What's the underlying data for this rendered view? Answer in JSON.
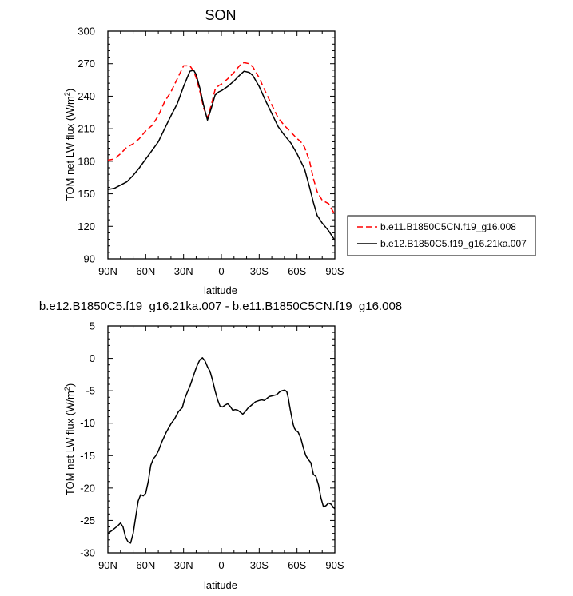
{
  "chart_data": [
    {
      "type": "line",
      "title": "SON",
      "xlabel": "latitude",
      "ylabel": "TOM net LW flux (W/m",
      "ylabel_sup": "2",
      "ylabel_end": ")",
      "xlim": [
        90,
        -90
      ],
      "ylim": [
        90,
        300
      ],
      "x_ticks": [
        90,
        60,
        30,
        0,
        -30,
        -60,
        -90
      ],
      "x_tick_labels": [
        "90N",
        "60N",
        "30N",
        "0",
        "30S",
        "60S",
        "90S"
      ],
      "y_ticks": [
        90,
        120,
        150,
        180,
        210,
        240,
        270,
        300
      ],
      "y_tick_labels": [
        "90",
        "120",
        "150",
        "180",
        "210",
        "240",
        "270",
        "300"
      ],
      "legend_position": "right",
      "series": [
        {
          "name": "b.e11.B1850C5CN.f19_g16.008",
          "color": "#ff0000",
          "dash": "dashed",
          "x": [
            90,
            85,
            80,
            75,
            70,
            65,
            60,
            55,
            50,
            45,
            40,
            35,
            30,
            25,
            22,
            20,
            17,
            14,
            11,
            8,
            5,
            2,
            0,
            -5,
            -10,
            -15,
            -18,
            -22,
            -25,
            -30,
            -35,
            -40,
            -45,
            -50,
            -55,
            -60,
            -63,
            -66,
            -70,
            -73,
            -76,
            -80,
            -85,
            -90
          ],
          "y": [
            181,
            182,
            187,
            193,
            196,
            201,
            208,
            213,
            222,
            235,
            244,
            256,
            268,
            268,
            263,
            257,
            244,
            229,
            220,
            232,
            246,
            250,
            251,
            256,
            262,
            269,
            271,
            270,
            267,
            257,
            244,
            232,
            220,
            213,
            207,
            201,
            198,
            193,
            180,
            164,
            152,
            144,
            141,
            131
          ]
        },
        {
          "name": "b.e12.B1850C5.f19_g16.21ka.007",
          "color": "#000000",
          "dash": "solid",
          "x": [
            90,
            85,
            80,
            75,
            70,
            65,
            60,
            55,
            50,
            45,
            40,
            35,
            30,
            25,
            22,
            20,
            17,
            14,
            11,
            8,
            5,
            2,
            0,
            -5,
            -10,
            -15,
            -18,
            -22,
            -25,
            -30,
            -35,
            -40,
            -45,
            -50,
            -55,
            -60,
            -63,
            -66,
            -70,
            -73,
            -76,
            -80,
            -85,
            -90
          ],
          "y": [
            154,
            155,
            158,
            161,
            167,
            174,
            182,
            190,
            198,
            210,
            222,
            233,
            249,
            263,
            264,
            260,
            247,
            231,
            218,
            229,
            241,
            244,
            245,
            249,
            254,
            260,
            263,
            262,
            259,
            249,
            236,
            224,
            212,
            204,
            197,
            187,
            180,
            173,
            156,
            142,
            130,
            123,
            116,
            107
          ]
        }
      ]
    },
    {
      "type": "line",
      "title": "b.e12.B1850C5.f19_g16.21ka.007 - b.e11.B1850C5CN.f19_g16.008",
      "xlabel": "latitude",
      "ylabel": "TOM net LW flux (W/m",
      "ylabel_sup": "2",
      "ylabel_end": ")",
      "xlim": [
        90,
        -90
      ],
      "ylim": [
        -30,
        5
      ],
      "x_ticks": [
        90,
        60,
        30,
        0,
        -30,
        -60,
        -90
      ],
      "x_tick_labels": [
        "90N",
        "60N",
        "30N",
        "0",
        "30S",
        "60S",
        "90S"
      ],
      "y_ticks": [
        -30,
        -25,
        -20,
        -15,
        -10,
        -5,
        0,
        5
      ],
      "y_tick_labels": [
        "-30",
        "-25",
        "-20",
        "-15",
        "-10",
        "-5",
        "0",
        "5"
      ],
      "series": [
        {
          "color": "#000000",
          "dash": "solid",
          "x": [
            90,
            87,
            84,
            82,
            80,
            78,
            76,
            74,
            72,
            70,
            68,
            66,
            64,
            62,
            60,
            58,
            56,
            54,
            52,
            50,
            47,
            44,
            42,
            40,
            37,
            34,
            31,
            29,
            27,
            25,
            23,
            21,
            19,
            17,
            15,
            13,
            11,
            9,
            7,
            5,
            3,
            1,
            -1,
            -3,
            -5,
            -7,
            -9,
            -11,
            -13,
            -15,
            -17,
            -19,
            -21,
            -24,
            -27,
            -30,
            -32,
            -34,
            -36,
            -38,
            -40,
            -42,
            -44,
            -46,
            -48,
            -50,
            -51,
            -52,
            -53,
            -54,
            -55,
            -56,
            -57,
            -58,
            -59,
            -61,
            -63,
            -65,
            -67,
            -69,
            -71,
            -73,
            -75,
            -77,
            -79,
            -81,
            -83,
            -85,
            -87,
            -89,
            -90
          ],
          "y": [
            -27,
            -26.6,
            -26.1,
            -25.8,
            -25.4,
            -26.0,
            -27.6,
            -28.3,
            -28.5,
            -27.0,
            -24.5,
            -22.0,
            -21.0,
            -21.2,
            -20.8,
            -19.0,
            -16.5,
            -15.5,
            -15.0,
            -14.3,
            -12.8,
            -11.5,
            -10.8,
            -10.1,
            -9.3,
            -8.2,
            -7.6,
            -6.2,
            -5.2,
            -4.3,
            -3.2,
            -2.0,
            -1.0,
            -0.2,
            0.1,
            -0.4,
            -1.3,
            -2.0,
            -3.4,
            -5.0,
            -6.4,
            -7.4,
            -7.5,
            -7.2,
            -7.0,
            -7.4,
            -8.0,
            -7.9,
            -8.0,
            -8.3,
            -8.6,
            -8.2,
            -7.7,
            -7.2,
            -6.7,
            -6.5,
            -6.4,
            -6.5,
            -6.2,
            -5.9,
            -5.8,
            -5.7,
            -5.6,
            -5.2,
            -5.0,
            -4.9,
            -5.0,
            -5.2,
            -6.0,
            -7.2,
            -8.3,
            -9.3,
            -10.2,
            -10.8,
            -11.1,
            -11.4,
            -12.3,
            -13.8,
            -15.0,
            -15.6,
            -16.1,
            -17.9,
            -18.2,
            -19.5,
            -21.5,
            -22.9,
            -22.7,
            -22.3,
            -22.5,
            -23.0,
            -23.2
          ]
        }
      ]
    }
  ]
}
